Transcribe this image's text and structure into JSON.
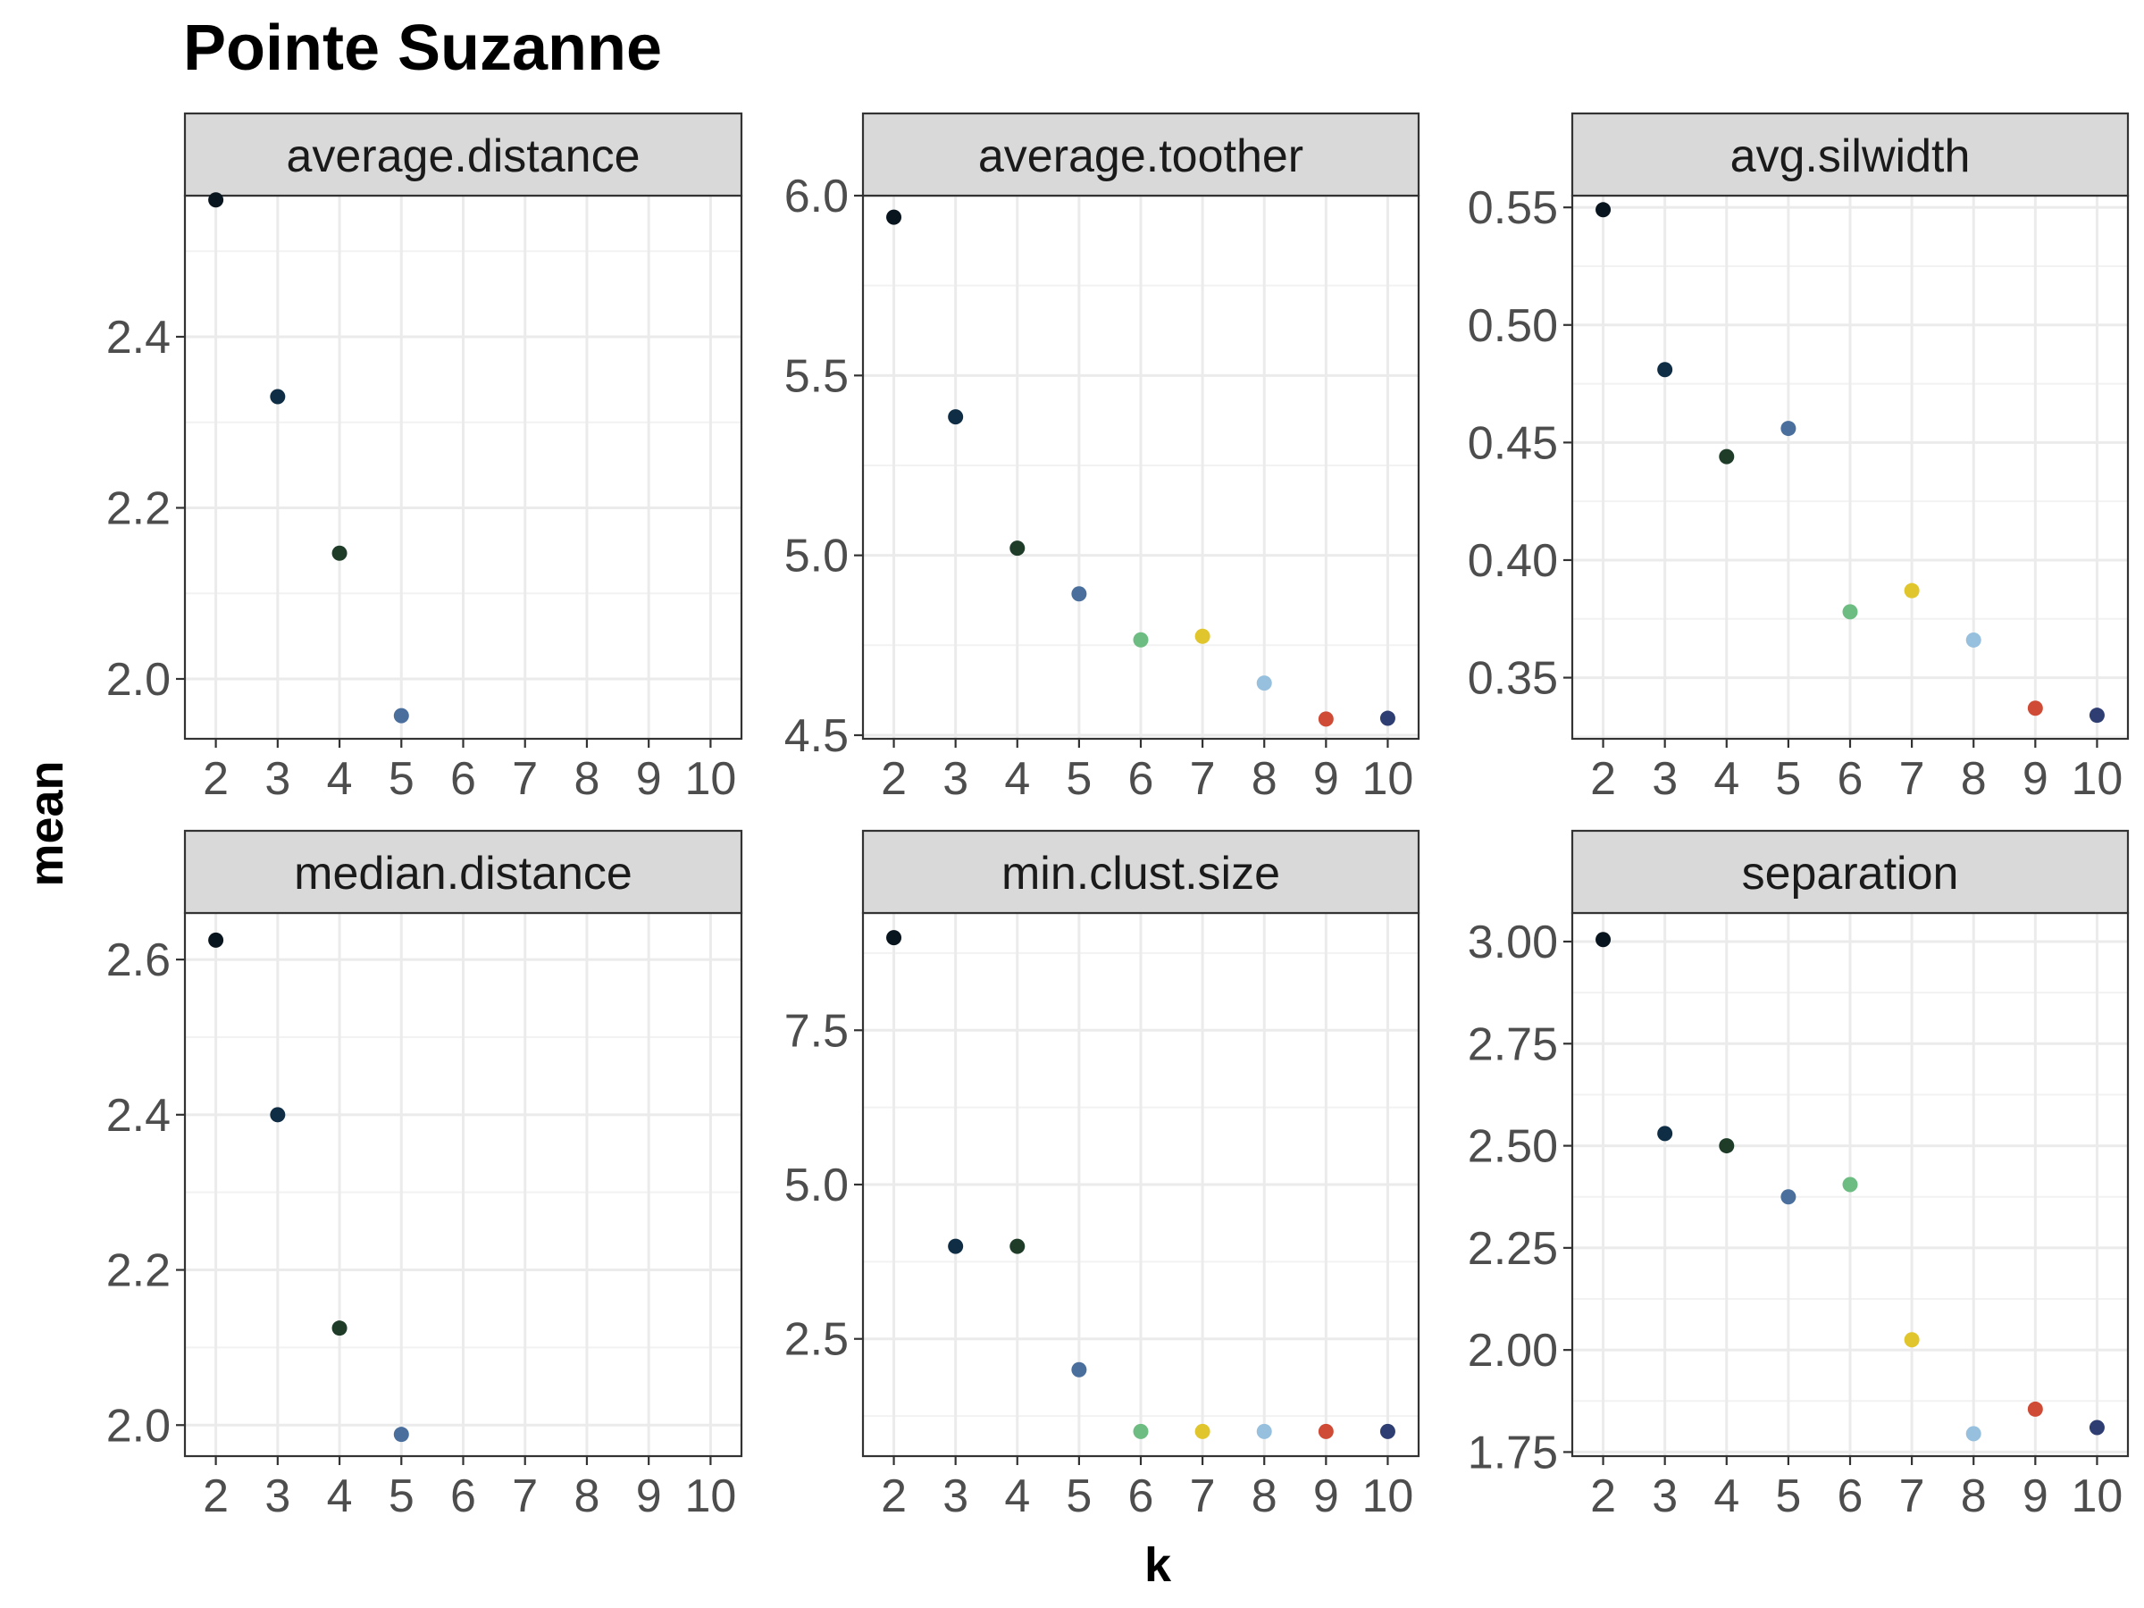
{
  "chart_data": {
    "type": "scatter",
    "title": "Pointe Suzanne",
    "xlabel": "k",
    "ylabel": "mean",
    "x_ticks": [
      "2",
      "3",
      "4",
      "5",
      "6",
      "7",
      "8",
      "9",
      "10"
    ],
    "xlim": [
      1.5,
      10.5
    ],
    "grid": true,
    "layout": "3 columns x 2 rows, free y scales",
    "k_colors": {
      "2": "#08141e",
      "3": "#0f2d44",
      "4": "#1e3c28",
      "5": "#4a6f9c",
      "6": "#6dbd83",
      "7": "#e0c62c",
      "8": "#97c0de",
      "9": "#d04b36",
      "10": "#2f3e72"
    },
    "panels": [
      {
        "name": "average.distance",
        "ylim": [
          1.93,
          2.565
        ],
        "y_ticks": [
          2.0,
          2.2,
          2.4
        ],
        "y_tick_labels": [
          "2.0",
          "2.2",
          "2.4"
        ],
        "points": [
          {
            "k": 2,
            "value": 2.56
          },
          {
            "k": 3,
            "value": 2.33
          },
          {
            "k": 4,
            "value": 2.147
          },
          {
            "k": 5,
            "value": 1.957
          }
        ]
      },
      {
        "name": "average.toother",
        "ylim": [
          4.49,
          6.0
        ],
        "y_ticks": [
          4.5,
          5.0,
          5.5,
          6.0
        ],
        "y_tick_labels": [
          "4.5",
          "5.0",
          "5.5",
          "6.0"
        ],
        "points": [
          {
            "k": 2,
            "value": 5.94
          },
          {
            "k": 3,
            "value": 5.385
          },
          {
            "k": 4,
            "value": 5.02
          },
          {
            "k": 5,
            "value": 4.893
          },
          {
            "k": 6,
            "value": 4.765
          },
          {
            "k": 7,
            "value": 4.775
          },
          {
            "k": 8,
            "value": 4.645
          },
          {
            "k": 9,
            "value": 4.545
          },
          {
            "k": 10,
            "value": 4.547
          }
        ]
      },
      {
        "name": "avg.silwidth",
        "ylim": [
          0.324,
          0.555
        ],
        "y_ticks": [
          0.35,
          0.4,
          0.45,
          0.5,
          0.55
        ],
        "y_tick_labels": [
          "0.35",
          "0.40",
          "0.45",
          "0.50",
          "0.55"
        ],
        "points": [
          {
            "k": 2,
            "value": 0.549
          },
          {
            "k": 3,
            "value": 0.481
          },
          {
            "k": 4,
            "value": 0.444
          },
          {
            "k": 5,
            "value": 0.456
          },
          {
            "k": 6,
            "value": 0.378
          },
          {
            "k": 7,
            "value": 0.387
          },
          {
            "k": 8,
            "value": 0.366
          },
          {
            "k": 9,
            "value": 0.337
          },
          {
            "k": 10,
            "value": 0.334
          }
        ]
      },
      {
        "name": "median.distance",
        "ylim": [
          1.96,
          2.66
        ],
        "y_ticks": [
          2.0,
          2.2,
          2.4,
          2.6
        ],
        "y_tick_labels": [
          "2.0",
          "2.2",
          "2.4",
          "2.6"
        ],
        "points": [
          {
            "k": 2,
            "value": 2.625
          },
          {
            "k": 3,
            "value": 2.4
          },
          {
            "k": 4,
            "value": 2.125
          },
          {
            "k": 5,
            "value": 1.988
          }
        ]
      },
      {
        "name": "min.clust.size",
        "ylim": [
          0.6,
          9.4
        ],
        "y_ticks": [
          2.5,
          5.0,
          7.5
        ],
        "y_tick_labels": [
          "2.5",
          "5.0",
          "7.5"
        ],
        "points": [
          {
            "k": 2,
            "value": 9.0
          },
          {
            "k": 3,
            "value": 4.0
          },
          {
            "k": 4,
            "value": 4.0
          },
          {
            "k": 5,
            "value": 2.0
          },
          {
            "k": 6,
            "value": 1.0
          },
          {
            "k": 7,
            "value": 1.0
          },
          {
            "k": 8,
            "value": 1.0
          },
          {
            "k": 9,
            "value": 1.0
          },
          {
            "k": 10,
            "value": 1.0
          }
        ]
      },
      {
        "name": "separation",
        "ylim": [
          1.74,
          3.07
        ],
        "y_ticks": [
          1.75,
          2.0,
          2.25,
          2.5,
          2.75,
          3.0
        ],
        "y_tick_labels": [
          "1.75",
          "2.00",
          "2.25",
          "2.50",
          "2.75",
          "3.00"
        ],
        "points": [
          {
            "k": 2,
            "value": 3.005
          },
          {
            "k": 3,
            "value": 2.53
          },
          {
            "k": 4,
            "value": 2.5
          },
          {
            "k": 5,
            "value": 2.375
          },
          {
            "k": 6,
            "value": 2.405
          },
          {
            "k": 7,
            "value": 2.025
          },
          {
            "k": 8,
            "value": 1.795
          },
          {
            "k": 9,
            "value": 1.855
          },
          {
            "k": 10,
            "value": 1.81
          }
        ]
      }
    ]
  }
}
